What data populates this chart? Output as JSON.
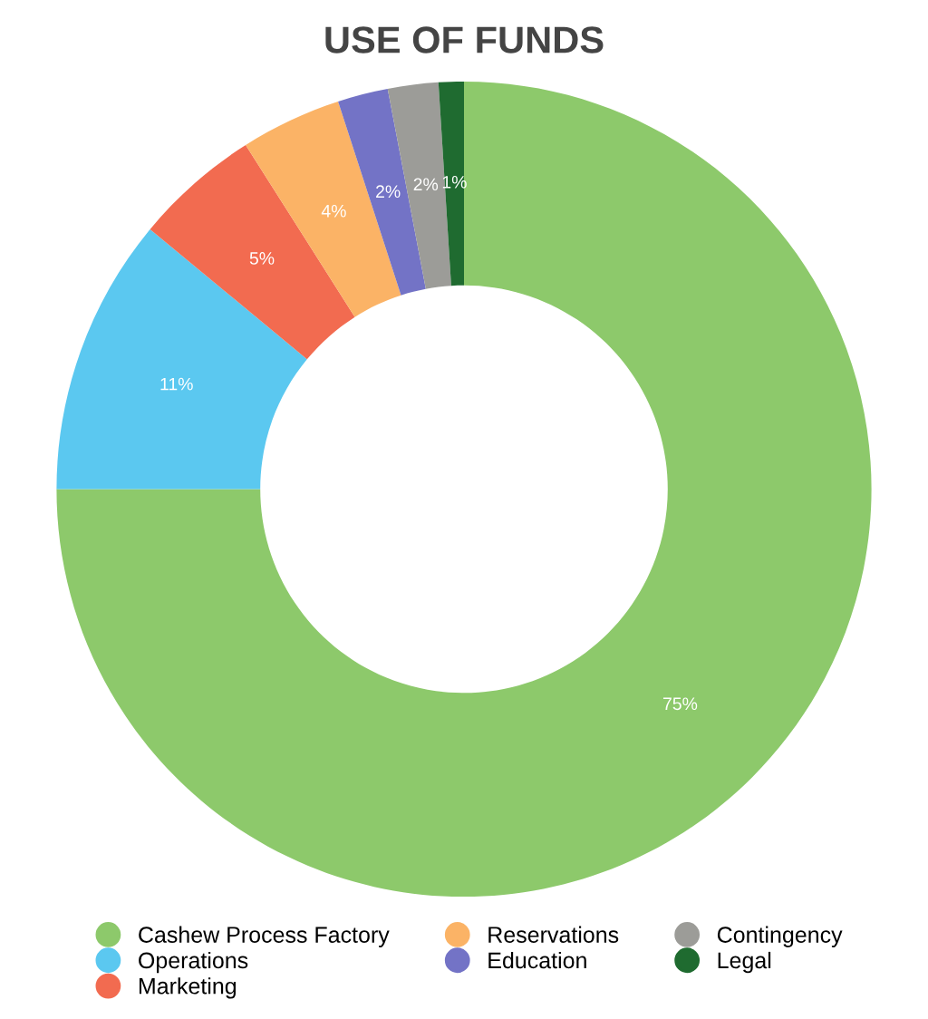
{
  "chart_data": {
    "type": "donut",
    "title": "USE OF FUNDS",
    "categories": [
      "Cashew Process Factory",
      "Operations",
      "Marketing",
      "Reservations",
      "Education",
      "Contingency",
      "Legal"
    ],
    "values": [
      75,
      11,
      5,
      4,
      2,
      2,
      1
    ],
    "colors": [
      "#8dc96b",
      "#5bc8f0",
      "#f26b50",
      "#fbb366",
      "#7373c6",
      "#9c9c98",
      "#1f6b30"
    ],
    "value_labels": [
      "75%",
      "11%",
      "5%",
      "4%",
      "2%",
      "2%",
      "1%"
    ],
    "legend": "bottom"
  }
}
